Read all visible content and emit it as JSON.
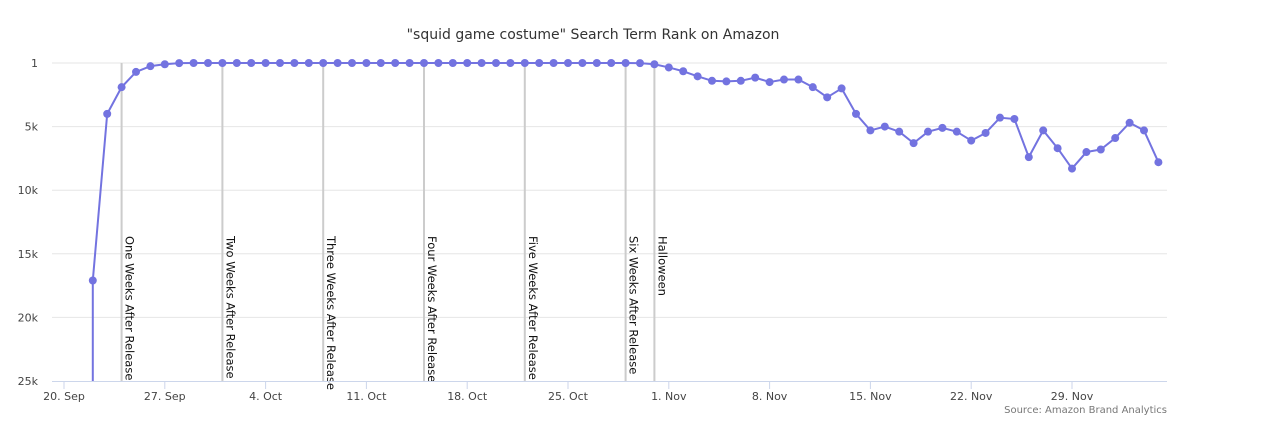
{
  "chart_data": {
    "type": "line",
    "title": "\"squid game costume\" Search Term Rank on Amazon",
    "source": "Source: Amazon Brand Analytics",
    "xlabel": "",
    "ylabel": "",
    "x_start": "2021-09-20",
    "x_tick_labels": [
      "20. Sep",
      "27. Sep",
      "4. Oct",
      "11. Oct",
      "18. Oct",
      "25. Oct",
      "1. Nov",
      "8. Nov",
      "15. Nov",
      "22. Nov",
      "29. Nov"
    ],
    "x_tick_dates": [
      "2021-09-20",
      "2021-09-27",
      "2021-10-04",
      "2021-10-11",
      "2021-10-18",
      "2021-10-25",
      "2021-11-01",
      "2021-11-08",
      "2021-11-15",
      "2021-11-22",
      "2021-11-29"
    ],
    "x_range": [
      "2021-09-20",
      "2021-12-06"
    ],
    "y_reversed": true,
    "ylim": [
      1,
      25000
    ],
    "y_ticks": [
      1,
      5000,
      10000,
      15000,
      20000,
      25000
    ],
    "y_tick_labels": [
      "1",
      "5k",
      "10k",
      "15k",
      "20k",
      "25k"
    ],
    "grid": true,
    "line_color": "#7373e0",
    "grid_color": "#e6e6e6",
    "plot_lines_color": "#cccccc",
    "plot_lines": [
      {
        "date": "2021-09-24",
        "label": "One Weeks After Release"
      },
      {
        "date": "2021-10-01",
        "label": "Two Weeks After Release"
      },
      {
        "date": "2021-10-08",
        "label": "Three Weeks After Release"
      },
      {
        "date": "2021-10-15",
        "label": "Four Weeks After Release"
      },
      {
        "date": "2021-10-22",
        "label": "Five Weeks After Release"
      },
      {
        "date": "2021-10-29",
        "label": "Six Weeks After Release"
      },
      {
        "date": "2021-10-31",
        "label": "Halloween"
      }
    ],
    "series": [
      {
        "points": [
          [
            "2021-09-22",
            26000
          ],
          [
            "2021-09-22",
            17100
          ],
          [
            "2021-09-23",
            4000
          ],
          [
            "2021-09-24",
            1900
          ],
          [
            "2021-09-25",
            700
          ],
          [
            "2021-09-26",
            250
          ],
          [
            "2021-09-27",
            100
          ],
          [
            "2021-09-28",
            10
          ],
          [
            "2021-09-29",
            1
          ],
          [
            "2021-09-30",
            1
          ],
          [
            "2021-10-01",
            1
          ],
          [
            "2021-10-02",
            1
          ],
          [
            "2021-10-03",
            1
          ],
          [
            "2021-10-04",
            1
          ],
          [
            "2021-10-05",
            1
          ],
          [
            "2021-10-06",
            1
          ],
          [
            "2021-10-07",
            1
          ],
          [
            "2021-10-08",
            1
          ],
          [
            "2021-10-09",
            1
          ],
          [
            "2021-10-10",
            1
          ],
          [
            "2021-10-11",
            1
          ],
          [
            "2021-10-12",
            1
          ],
          [
            "2021-10-13",
            1
          ],
          [
            "2021-10-14",
            1
          ],
          [
            "2021-10-15",
            1
          ],
          [
            "2021-10-16",
            1
          ],
          [
            "2021-10-17",
            1
          ],
          [
            "2021-10-18",
            1
          ],
          [
            "2021-10-19",
            1
          ],
          [
            "2021-10-20",
            1
          ],
          [
            "2021-10-21",
            1
          ],
          [
            "2021-10-22",
            1
          ],
          [
            "2021-10-23",
            1
          ],
          [
            "2021-10-24",
            1
          ],
          [
            "2021-10-25",
            1
          ],
          [
            "2021-10-26",
            1
          ],
          [
            "2021-10-27",
            1
          ],
          [
            "2021-10-28",
            1
          ],
          [
            "2021-10-29",
            1
          ],
          [
            "2021-10-30",
            10
          ],
          [
            "2021-10-31",
            100
          ],
          [
            "2021-11-01",
            350
          ],
          [
            "2021-11-02",
            650
          ],
          [
            "2021-11-03",
            1050
          ],
          [
            "2021-11-04",
            1400
          ],
          [
            "2021-11-05",
            1450
          ],
          [
            "2021-11-06",
            1400
          ],
          [
            "2021-11-07",
            1150
          ],
          [
            "2021-11-08",
            1500
          ],
          [
            "2021-11-09",
            1300
          ],
          [
            "2021-11-10",
            1300
          ],
          [
            "2021-11-11",
            1900
          ],
          [
            "2021-11-12",
            2700
          ],
          [
            "2021-11-13",
            2000
          ],
          [
            "2021-11-14",
            4000
          ],
          [
            "2021-11-15",
            5300
          ],
          [
            "2021-11-16",
            5000
          ],
          [
            "2021-11-17",
            5400
          ],
          [
            "2021-11-18",
            6300
          ],
          [
            "2021-11-19",
            5400
          ],
          [
            "2021-11-20",
            5100
          ],
          [
            "2021-11-21",
            5400
          ],
          [
            "2021-11-22",
            6100
          ],
          [
            "2021-11-23",
            5500
          ],
          [
            "2021-11-24",
            4300
          ],
          [
            "2021-11-25",
            4400
          ],
          [
            "2021-11-26",
            7400
          ],
          [
            "2021-11-27",
            5300
          ],
          [
            "2021-11-28",
            6700
          ],
          [
            "2021-11-29",
            8300
          ],
          [
            "2021-11-30",
            7000
          ],
          [
            "2021-12-01",
            6800
          ],
          [
            "2021-12-02",
            5900
          ],
          [
            "2021-12-03",
            4700
          ],
          [
            "2021-12-04",
            5300
          ],
          [
            "2021-12-05",
            7800
          ]
        ]
      }
    ]
  }
}
